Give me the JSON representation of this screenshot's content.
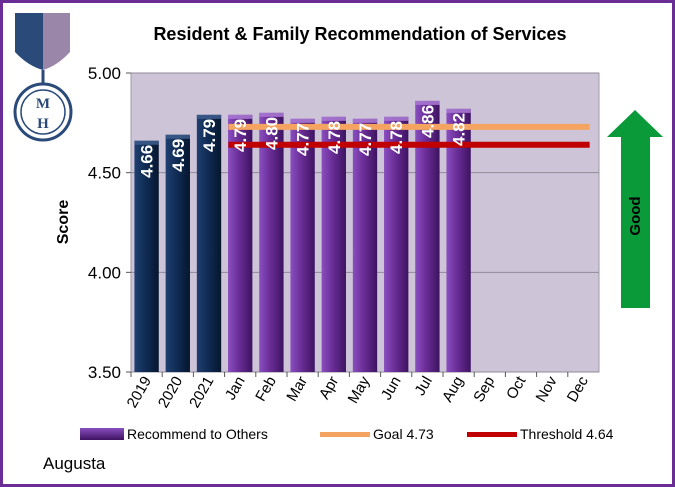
{
  "chart_data": {
    "type": "bar",
    "title": "Resident & Family Recommendation of Services",
    "ylabel": "Score",
    "xlabel": "",
    "ylim": [
      3.5,
      5.0
    ],
    "yticks": [
      "3.50",
      "4.00",
      "4.50",
      "5.00"
    ],
    "categories": [
      "2019",
      "2020",
      "2021",
      "Jan",
      "Feb",
      "Mar",
      "Apr",
      "May",
      "Jun",
      "Jul",
      "Aug",
      "Sep",
      "Oct",
      "Nov",
      "Dec"
    ],
    "series": [
      {
        "name": "Recommend to Others",
        "values": [
          4.66,
          4.69,
          4.79,
          4.79,
          4.8,
          4.77,
          4.78,
          4.77,
          4.78,
          4.86,
          4.82,
          null,
          null,
          null,
          null
        ],
        "labels": [
          "4.66",
          "4.69",
          "4.79",
          "4.79",
          "4.80",
          "4.77",
          "4.78",
          "4.77",
          "4.78",
          "4.86",
          "4.82",
          "",
          "",
          "",
          ""
        ]
      }
    ],
    "goal": {
      "name": "Goal 4.73",
      "value": 4.73
    },
    "threshold": {
      "name": "Threshold 4.64",
      "value": 4.64
    },
    "annual_bar_count": 3,
    "indicator": "Good"
  },
  "legend": {
    "series_label": "Recommend to Others",
    "goal_label": "Goal 4.73",
    "threshold_label": "Threshold 4.64"
  },
  "location": "Augusta",
  "logo": {
    "text": "MH"
  },
  "colors": {
    "annual_bar": "#0f2a52",
    "monthly_bar": "#6a2d96",
    "plot_bg": "#cdc4d8",
    "goal": "#f4a460",
    "threshold": "#c00000",
    "arrow": "#0a9a3a",
    "frame": "#6a2d96"
  }
}
